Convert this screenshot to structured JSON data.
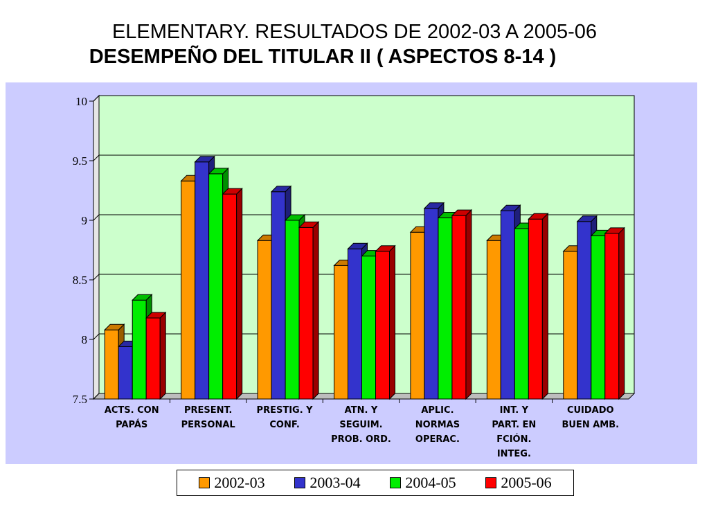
{
  "title": {
    "line1": "ELEMENTARY. RESULTADOS DE 2002-03 A 2005-06",
    "line2": "DESEMPEÑO DEL TITULAR II ( ASPECTOS  8-14 )"
  },
  "colors": {
    "panel_bg": "#ccccff",
    "plot_bg": "#ccffcc",
    "floor": "#bdbdbd"
  },
  "chart_data": {
    "type": "bar",
    "categories": [
      [
        "ACTS. CON",
        "PAPÁS"
      ],
      [
        "PRESENT.",
        "PERSONAL"
      ],
      [
        "PRESTIG. Y",
        "CONF."
      ],
      [
        "ATN. Y",
        "SEGUIM.",
        "PROB. ORD."
      ],
      [
        "APLIC.",
        "NORMAS",
        "OPERAC."
      ],
      [
        "INT. Y",
        "PART. EN",
        "FCIÓN.",
        "INTEG."
      ],
      [
        "CUIDADO",
        "BUEN AMB."
      ]
    ],
    "series": [
      {
        "name": "2002-03",
        "color": "#ff9900",
        "values": [
          8.08,
          9.33,
          8.83,
          8.62,
          8.9,
          8.83,
          8.74
        ]
      },
      {
        "name": "2003-04",
        "color": "#3333cc",
        "values": [
          7.94,
          9.49,
          9.24,
          8.76,
          9.1,
          9.08,
          8.99
        ]
      },
      {
        "name": "2004-05",
        "color": "#00ee00",
        "values": [
          8.33,
          9.39,
          9.0,
          8.7,
          9.02,
          8.93,
          8.87
        ]
      },
      {
        "name": "2005-06",
        "color": "#ff0000",
        "values": [
          8.18,
          9.22,
          8.94,
          8.74,
          9.04,
          9.01,
          8.89
        ]
      }
    ],
    "ylim": [
      7.5,
      10
    ],
    "yticks": [
      "7.5",
      "8",
      "8.5",
      "9",
      "9.5",
      "10"
    ],
    "grid": true,
    "legend_position": "bottom"
  }
}
